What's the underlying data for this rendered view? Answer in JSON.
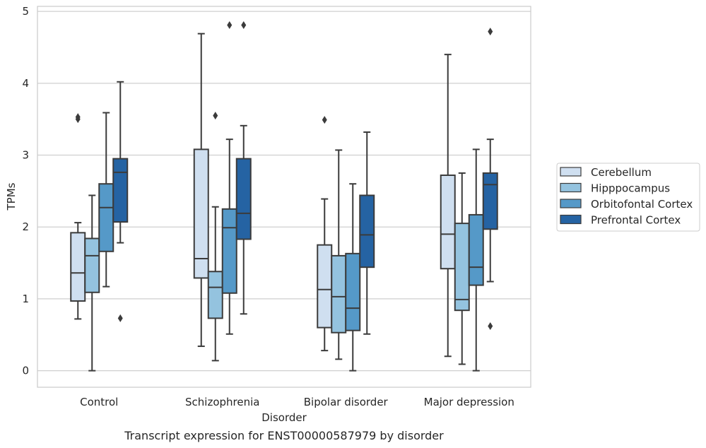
{
  "chart_data": {
    "type": "box",
    "xlabel": "Disorder",
    "ylabel": "TPMs",
    "caption": "Transcript expression for ENST00000587979 by disorder",
    "ylim": [
      -0.23,
      5.07
    ],
    "yticks": [
      0,
      1,
      2,
      3,
      4,
      5
    ],
    "grid": "horizontal",
    "legend_position": "right",
    "categories": [
      "Control",
      "Schizophrenia",
      "Bipolar disorder",
      "Major depression"
    ],
    "series": [
      {
        "name": "Cerebellum",
        "color": "#cfdff0",
        "boxes": [
          {
            "whislo": 0.72,
            "q1": 0.97,
            "med": 1.36,
            "q3": 1.92,
            "whishi": 2.06,
            "fliers": [
              3.5,
              3.53
            ]
          },
          {
            "whislo": 0.34,
            "q1": 1.29,
            "med": 1.56,
            "q3": 3.08,
            "whishi": 4.69,
            "fliers": []
          },
          {
            "whislo": 0.28,
            "q1": 0.6,
            "med": 1.13,
            "q3": 1.75,
            "whishi": 2.39,
            "fliers": [
              3.49
            ]
          },
          {
            "whislo": 0.2,
            "q1": 1.42,
            "med": 1.9,
            "q3": 2.72,
            "whishi": 4.4,
            "fliers": []
          }
        ]
      },
      {
        "name": "Hipppocampus",
        "color": "#94c3df",
        "boxes": [
          {
            "whislo": 0.0,
            "q1": 1.09,
            "med": 1.6,
            "q3": 1.84,
            "whishi": 2.44,
            "fliers": []
          },
          {
            "whislo": 0.14,
            "q1": 0.73,
            "med": 1.16,
            "q3": 1.38,
            "whishi": 2.28,
            "fliers": [
              3.55
            ]
          },
          {
            "whislo": 0.16,
            "q1": 0.53,
            "med": 1.03,
            "q3": 1.6,
            "whishi": 3.07,
            "fliers": []
          },
          {
            "whislo": 0.09,
            "q1": 0.84,
            "med": 0.99,
            "q3": 2.05,
            "whishi": 2.75,
            "fliers": []
          }
        ]
      },
      {
        "name": "Orbitofontal Cortex",
        "color": "#5599c8",
        "boxes": [
          {
            "whislo": 1.17,
            "q1": 1.66,
            "med": 2.27,
            "q3": 2.6,
            "whishi": 3.59,
            "fliers": []
          },
          {
            "whislo": 0.51,
            "q1": 1.08,
            "med": 1.99,
            "q3": 2.25,
            "whishi": 3.22,
            "fliers": [
              4.81
            ]
          },
          {
            "whislo": 0.0,
            "q1": 0.56,
            "med": 0.87,
            "q3": 1.63,
            "whishi": 2.6,
            "fliers": []
          },
          {
            "whislo": 0.0,
            "q1": 1.19,
            "med": 1.44,
            "q3": 2.17,
            "whishi": 3.08,
            "fliers": []
          }
        ]
      },
      {
        "name": "Prefrontal Cortex",
        "color": "#2563a3",
        "boxes": [
          {
            "whislo": 1.78,
            "q1": 2.07,
            "med": 2.76,
            "q3": 2.95,
            "whishi": 4.02,
            "fliers": [
              0.73
            ]
          },
          {
            "whislo": 0.79,
            "q1": 1.83,
            "med": 2.19,
            "q3": 2.95,
            "whishi": 3.41,
            "fliers": [
              4.81
            ]
          },
          {
            "whislo": 0.51,
            "q1": 1.44,
            "med": 1.89,
            "q3": 2.44,
            "whishi": 3.32,
            "fliers": []
          },
          {
            "whislo": 1.24,
            "q1": 1.97,
            "med": 2.59,
            "q3": 2.75,
            "whishi": 3.22,
            "fliers": [
              0.62,
              4.72
            ]
          }
        ]
      }
    ]
  }
}
